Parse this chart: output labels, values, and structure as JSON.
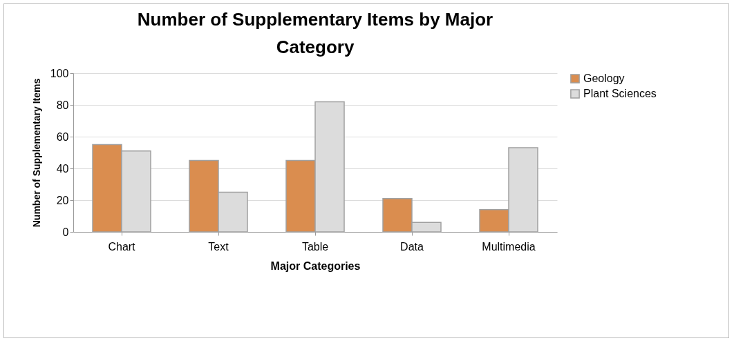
{
  "chart_data": {
    "type": "bar",
    "title": "Number of Supplementary Items by Major Category",
    "xlabel": "Major Categories",
    "ylabel": "Number of Supplementary Items",
    "categories": [
      "Chart",
      "Text",
      "Table",
      "Data",
      "Multimedia"
    ],
    "series": [
      {
        "name": "Geology",
        "color": "#da8d4f",
        "values": [
          55,
          45,
          45,
          21,
          14
        ]
      },
      {
        "name": "Plant Sciences",
        "color": "#dcdcdc",
        "values": [
          51,
          25,
          82,
          6,
          53
        ]
      }
    ],
    "ylim": [
      0,
      100
    ],
    "yticks": [
      0,
      20,
      40,
      60,
      80,
      100
    ],
    "grid": "y",
    "legend": "right"
  }
}
